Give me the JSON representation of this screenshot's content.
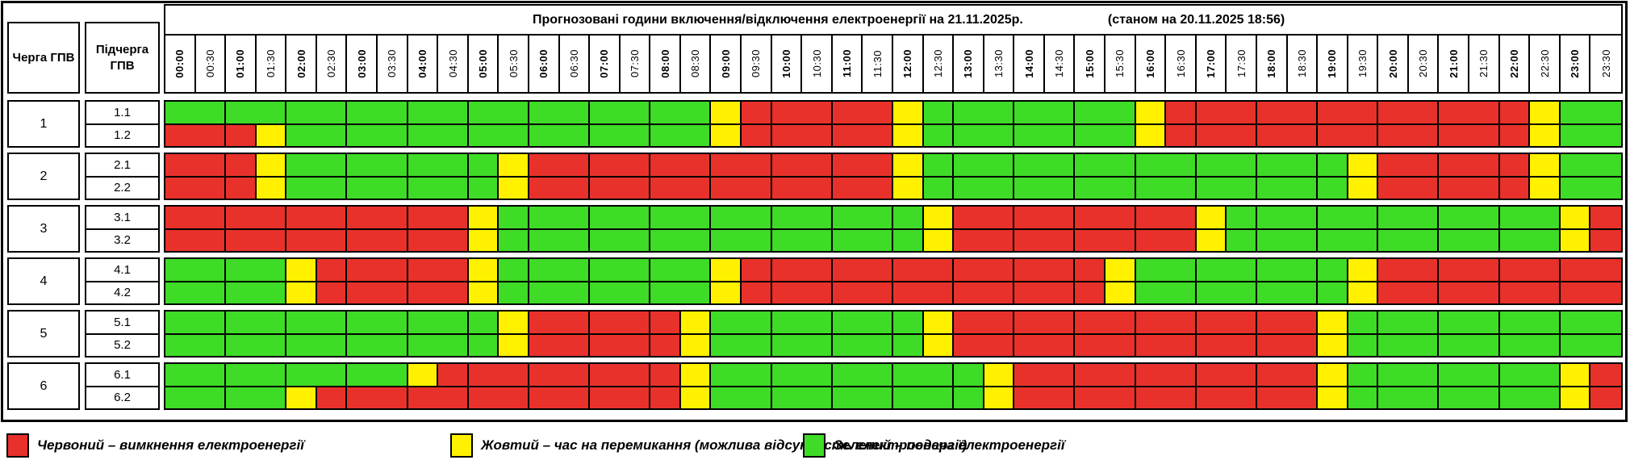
{
  "title": {
    "main": "Прогнозовані години включення/відключення електроенергії на 21.11.2025р.",
    "as_of": "(станом на 20.11.2025 18:56)"
  },
  "columns": {
    "queue": "Черга ГПВ",
    "subqueue": "Підчерга ГПВ"
  },
  "time_slots": [
    "00:00",
    "00:30",
    "01:00",
    "01:30",
    "02:00",
    "02:30",
    "03:00",
    "03:30",
    "04:00",
    "04:30",
    "05:00",
    "05:30",
    "06:00",
    "06:30",
    "07:00",
    "07:30",
    "08:00",
    "08:30",
    "09:00",
    "09:30",
    "10:00",
    "10:30",
    "11:00",
    "11:30",
    "12:00",
    "12:30",
    "13:00",
    "13:30",
    "14:00",
    "14:30",
    "15:00",
    "15:30",
    "16:00",
    "16:30",
    "17:00",
    "17:30",
    "18:00",
    "18:30",
    "19:00",
    "19:30",
    "20:00",
    "20:30",
    "21:00",
    "21:30",
    "22:00",
    "22:30",
    "23:00",
    "23:30"
  ],
  "groups": [
    {
      "queue": "1",
      "rows": [
        {
          "label": "1.1",
          "cells": "GGGGGGGGGGGGGGGGGGYRRRRRYGGGGGGGYRRRRRRRRRRRRYGG"
        },
        {
          "label": "1.2",
          "cells": "RRRYGGGGGGGGGGGGGGYRRRRRYGGGGGGGYRRRRRRRRRRRRYGG"
        }
      ]
    },
    {
      "queue": "2",
      "rows": [
        {
          "label": "2.1",
          "cells": "RRRYGGGGGGGYRRRRRRRRRRRRYGGGGGGGGGGGGGGYRRRRRYGG"
        },
        {
          "label": "2.2",
          "cells": "RRRYGGGGGGGYRRRRRRRRRRRRYGGGGGGGGGGGGGGYRRRRRYGG"
        }
      ]
    },
    {
      "queue": "3",
      "rows": [
        {
          "label": "3.1",
          "cells": "RRRRRRRRRRYGGGGGGGGGGGGGGYRRRRRRRRYGGGGGGGGGGGYR"
        },
        {
          "label": "3.2",
          "cells": "RRRRRRRRRRYGGGGGGGGGGGGGGYRRRRRRRRYGGGGGGGGGGGYR"
        }
      ]
    },
    {
      "queue": "4",
      "rows": [
        {
          "label": "4.1",
          "cells": "GGGGYRRRRRYGGGGGGGYRRRRRRRRRRRRYGGGGGGGYRRRRRRRR"
        },
        {
          "label": "4.2",
          "cells": "GGGGYRRRRRYGGGGGGGYRRRRRRRRRRRRYGGGGGGGYRRRRRRRR"
        }
      ]
    },
    {
      "queue": "5",
      "rows": [
        {
          "label": "5.1",
          "cells": "GGGGGGGGGGGYRRRRRYGGGGGGGYRRRRRRRRRRRRYGGGGGGGGG"
        },
        {
          "label": "5.2",
          "cells": "GGGGGGGGGGGYRRRRRYGGGGGGGYRRRRRRRRRRRRYGGGGGGGGG"
        }
      ]
    },
    {
      "queue": "6",
      "rows": [
        {
          "label": "6.1",
          "cells": "GGGGGGGGYRRRRRRRRYGGGGGGGGGYRRRRRRRRRRYGGGGGGGYR"
        },
        {
          "label": "6.2",
          "cells": "GGGGYRRRRRRRRRRRRYGGGGGGGGGYRRRRRRRRRRYGGGGGGGYR"
        }
      ]
    }
  ],
  "legend": [
    {
      "color": "red",
      "label": "Червоний – вимкнення електроенергії"
    },
    {
      "color": "yellow",
      "label": "Жовтий – час на перемикання (можлива відсутність електроенергії)"
    },
    {
      "color": "green",
      "label": "Зелений – подача електроенергії"
    }
  ],
  "colors": {
    "red": "#E8312B",
    "yellow": "#FFF100",
    "green": "#3EDB27"
  },
  "cell_codes": {
    "G": "green — подача електроенергії",
    "Y": "жовтий — час на перемикання",
    "R": "червоний — вимкнення"
  },
  "chart_data": {
    "type": "heatmap",
    "title": "Прогнозовані години включення/відключення електроенергії на 21.11.2025р.",
    "subtitle": "(станом на 20.11.2025 18:56)",
    "x_labels": [
      "00:00",
      "00:30",
      "01:00",
      "01:30",
      "02:00",
      "02:30",
      "03:00",
      "03:30",
      "04:00",
      "04:30",
      "05:00",
      "05:30",
      "06:00",
      "06:30",
      "07:00",
      "07:30",
      "08:00",
      "08:30",
      "09:00",
      "09:30",
      "10:00",
      "10:30",
      "11:00",
      "11:30",
      "12:00",
      "12:30",
      "13:00",
      "13:30",
      "14:00",
      "14:30",
      "15:00",
      "15:30",
      "16:00",
      "16:30",
      "17:00",
      "17:30",
      "18:00",
      "18:30",
      "19:00",
      "19:30",
      "20:00",
      "20:30",
      "21:00",
      "21:30",
      "22:00",
      "22:30",
      "23:00",
      "23:30"
    ],
    "y_labels": [
      "1.1",
      "1.2",
      "2.1",
      "2.2",
      "3.1",
      "3.2",
      "4.1",
      "4.2",
      "5.1",
      "5.2",
      "6.1",
      "6.2"
    ],
    "matrix": [
      "GGGGGGGGGGGGGGGGGGYRRRRRYGGGGGGGYRRRRRRRRRRRRYGG",
      "RRRYGGGGGGGGGGGGGGYRRRRRYGGGGGGGYRRRRRRRRRRRRYGG",
      "RRRYGGGGGGGYRRRRRRRRRRRRYGGGGGGGGGGGGGGYRRRRRYGG",
      "RRRYGGGGGGGYRRRRRRRRRRRRYGGGGGGGGGGGGGGYRRRRRYGG",
      "RRRRRRRRRRYGGGGGGGGGGGGGGYRRRRRRRRYGGGGGGGGGGGYR",
      "RRRRRRRRRRYGGGGGGGGGGGGGGYRRRRRRRRYGGGGGGGGGGGYR",
      "GGGGYRRRRRYGGGGGGGYRRRRRRRRRRRRYGGGGGGGYRRRRRRRR",
      "GGGGYRRRRRYGGGGGGGYRRRRRRRRRRRRYGGGGGGGYRRRRRRRR",
      "GGGGGGGGGGGYRRRRRYGGGGGGGYRRRRRRRRRRRRYGGGGGGGGG",
      "GGGGGGGGGGGYRRRRRYGGGGGGGYRRRRRRRRRRRRYGGGGGGGGG",
      "GGGGGGGGYRRRRRRRRYGGGGGGGGGYRRRRRRRRRRYGGGGGGGYR",
      "GGGGYRRRRRRRRRRRRYGGGGGGGGGYRRRRRRRRRRYGGGGGGGYR"
    ],
    "value_legend": {
      "G": "Зелений – подача електроенергії",
      "Y": "Жовтий – час на перемикання (можлива відсутність електроенергії)",
      "R": "Червоний – вимкнення електроенергії"
    },
    "legend_position": "bottom"
  }
}
